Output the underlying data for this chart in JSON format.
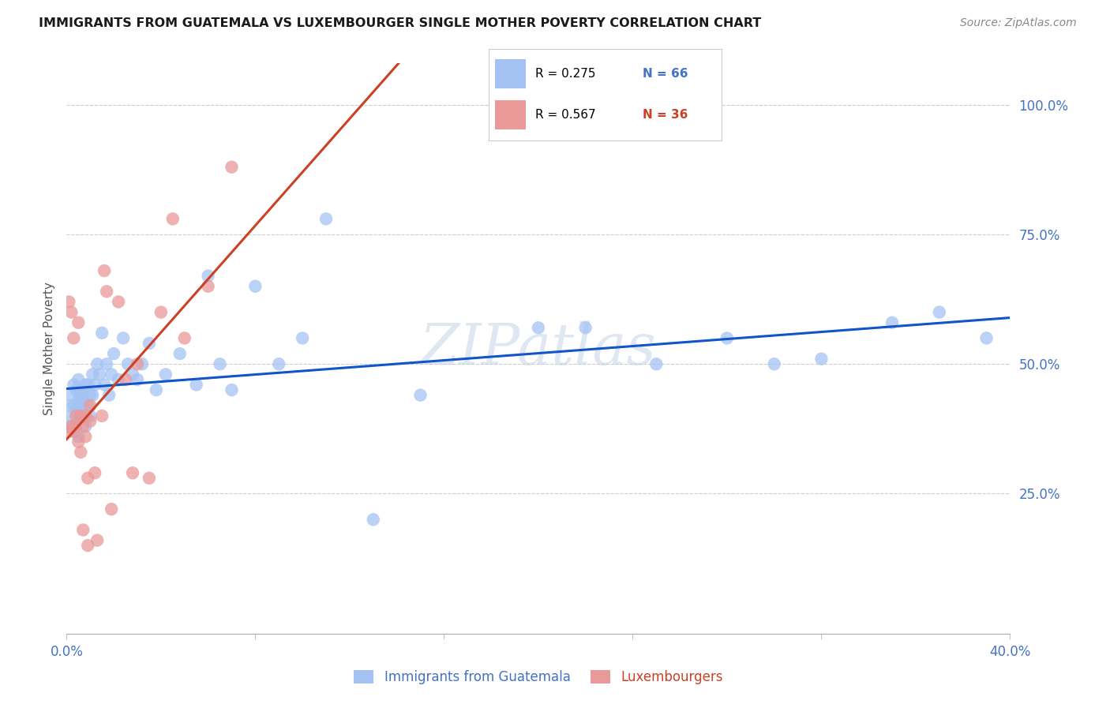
{
  "title": "IMMIGRANTS FROM GUATEMALA VS LUXEMBOURGER SINGLE MOTHER POVERTY CORRELATION CHART",
  "source": "Source: ZipAtlas.com",
  "ylabel": "Single Mother Poverty",
  "ytick_labels": [
    "25.0%",
    "50.0%",
    "75.0%",
    "100.0%"
  ],
  "ytick_values": [
    0.25,
    0.5,
    0.75,
    1.0
  ],
  "legend_blue_r": "R = 0.275",
  "legend_blue_n": "N = 66",
  "legend_pink_r": "R = 0.567",
  "legend_pink_n": "N = 36",
  "legend_label_blue": "Immigrants from Guatemala",
  "legend_label_pink": "Luxembourgers",
  "blue_color": "#a4c2f4",
  "pink_color": "#ea9999",
  "trendline_blue": "#1155cc",
  "trendline_pink": "#cc4125",
  "watermark_text": "ZIPatlas",
  "blue_scatter_x": [
    0.001,
    0.001,
    0.002,
    0.002,
    0.003,
    0.003,
    0.003,
    0.004,
    0.004,
    0.004,
    0.005,
    0.005,
    0.005,
    0.005,
    0.006,
    0.006,
    0.006,
    0.007,
    0.007,
    0.007,
    0.008,
    0.008,
    0.009,
    0.009,
    0.01,
    0.01,
    0.011,
    0.011,
    0.012,
    0.013,
    0.014,
    0.015,
    0.016,
    0.017,
    0.018,
    0.019,
    0.02,
    0.022,
    0.024,
    0.026,
    0.028,
    0.03,
    0.032,
    0.035,
    0.038,
    0.042,
    0.048,
    0.055,
    0.06,
    0.065,
    0.07,
    0.08,
    0.09,
    0.1,
    0.11,
    0.13,
    0.15,
    0.2,
    0.22,
    0.25,
    0.28,
    0.3,
    0.32,
    0.35,
    0.37,
    0.39
  ],
  "blue_scatter_y": [
    0.42,
    0.38,
    0.4,
    0.44,
    0.38,
    0.42,
    0.46,
    0.37,
    0.41,
    0.45,
    0.39,
    0.43,
    0.47,
    0.36,
    0.41,
    0.45,
    0.43,
    0.4,
    0.44,
    0.42,
    0.38,
    0.46,
    0.42,
    0.46,
    0.44,
    0.4,
    0.48,
    0.44,
    0.46,
    0.5,
    0.48,
    0.56,
    0.46,
    0.5,
    0.44,
    0.48,
    0.52,
    0.47,
    0.55,
    0.5,
    0.48,
    0.47,
    0.5,
    0.54,
    0.45,
    0.48,
    0.52,
    0.46,
    0.67,
    0.5,
    0.45,
    0.65,
    0.5,
    0.55,
    0.78,
    0.2,
    0.44,
    0.57,
    0.57,
    0.5,
    0.55,
    0.5,
    0.51,
    0.58,
    0.6,
    0.55
  ],
  "pink_scatter_x": [
    0.001,
    0.001,
    0.002,
    0.002,
    0.003,
    0.003,
    0.004,
    0.004,
    0.005,
    0.005,
    0.006,
    0.006,
    0.007,
    0.007,
    0.008,
    0.008,
    0.009,
    0.009,
    0.01,
    0.01,
    0.012,
    0.013,
    0.015,
    0.016,
    0.017,
    0.019,
    0.022,
    0.025,
    0.028,
    0.03,
    0.035,
    0.04,
    0.045,
    0.05,
    0.06,
    0.07
  ],
  "pink_scatter_y": [
    0.37,
    0.62,
    0.38,
    0.6,
    0.37,
    0.55,
    0.38,
    0.4,
    0.35,
    0.58,
    0.33,
    0.4,
    0.38,
    0.18,
    0.36,
    0.4,
    0.15,
    0.28,
    0.39,
    0.42,
    0.29,
    0.16,
    0.4,
    0.68,
    0.64,
    0.22,
    0.62,
    0.47,
    0.29,
    0.5,
    0.28,
    0.6,
    0.78,
    0.55,
    0.65,
    0.88
  ],
  "xlim": [
    0.0,
    0.4
  ],
  "ylim": [
    -0.02,
    1.08
  ],
  "figwidth": 14.06,
  "figheight": 8.92
}
